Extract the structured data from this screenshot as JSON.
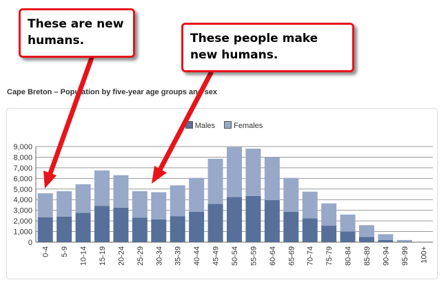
{
  "callouts": [
    {
      "text": "These are new humans."
    },
    {
      "text": "These people make new humans."
    }
  ],
  "colors": {
    "males": "#56709a",
    "females": "#97a8c8",
    "arrow": "#e8141b",
    "grid": "#999999"
  },
  "chart_data": {
    "type": "bar",
    "stacked": true,
    "title": "Cape Breton – Population by five-year age groups and sex",
    "categories": [
      "0-4",
      "5-9",
      "10-14",
      "15-19",
      "20-24",
      "25-29",
      "30-34",
      "35-39",
      "40-44",
      "45-49",
      "50-54",
      "55-59",
      "60-64",
      "65-69",
      "70-74",
      "75-79",
      "80-84",
      "85-89",
      "90-94",
      "95-99",
      "100+"
    ],
    "series": [
      {
        "name": "Males",
        "values": [
          2350,
          2400,
          2750,
          3400,
          3250,
          2300,
          2150,
          2450,
          2850,
          3600,
          4250,
          4350,
          3950,
          2850,
          2250,
          1550,
          1000,
          500,
          200,
          30,
          0
        ]
      },
      {
        "name": "Females",
        "values": [
          2250,
          2400,
          2700,
          3350,
          3050,
          2500,
          2550,
          2900,
          3200,
          4250,
          4700,
          4450,
          4050,
          3200,
          2500,
          2100,
          1600,
          1100,
          550,
          170,
          0
        ]
      }
    ],
    "ylim": [
      0,
      9000
    ],
    "yticks": [
      "0",
      "1,000",
      "2,000",
      "3,000",
      "4,000",
      "5,000",
      "6,000",
      "7,000",
      "8,000",
      "9,000"
    ],
    "grid": true,
    "legend_position": "top-center"
  }
}
